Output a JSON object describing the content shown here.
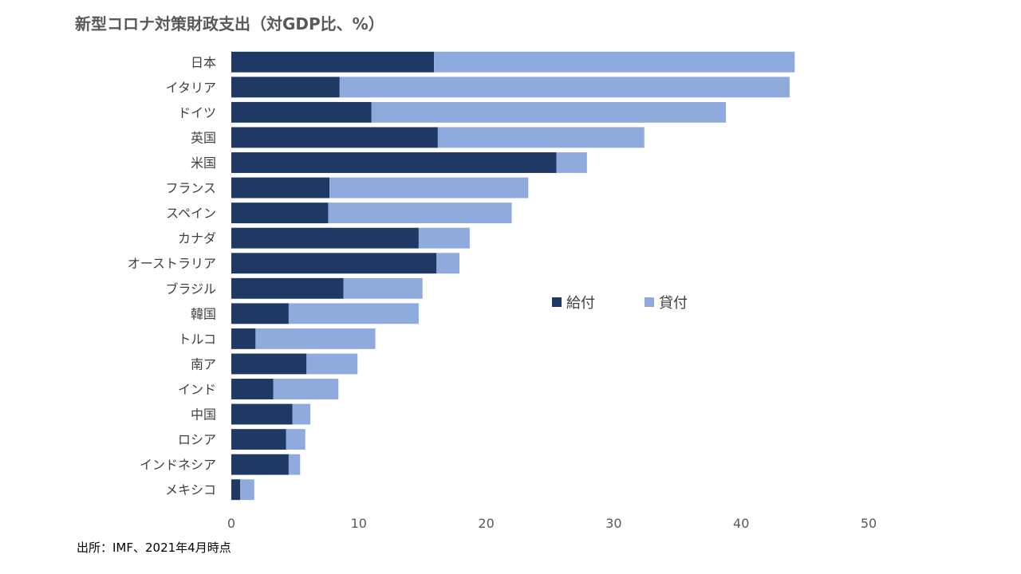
{
  "chart_data": {
    "type": "bar",
    "orientation": "horizontal",
    "stacked": true,
    "title": "新型コロナ対策財政支出（対GDP比、%）",
    "source": "出所：IMF、2021年4月時点",
    "categories": [
      "日本",
      "イタリア",
      "ドイツ",
      "英国",
      "米国",
      "フランス",
      "スペイン",
      "カナダ",
      "オーストラリア",
      "ブラジル",
      "韓国",
      "トルコ",
      "南ア",
      "インド",
      "中国",
      "ロシア",
      "インドネシア",
      "メキシコ"
    ],
    "series": [
      {
        "name": "給付",
        "color": "#1f3864",
        "values": [
          15.9,
          8.5,
          11.0,
          16.2,
          25.5,
          7.7,
          7.6,
          14.7,
          16.1,
          8.8,
          4.5,
          1.9,
          5.9,
          3.3,
          4.8,
          4.3,
          4.5,
          0.7
        ]
      },
      {
        "name": "貸付",
        "color": "#8faadc",
        "values": [
          28.3,
          35.3,
          27.8,
          16.2,
          2.4,
          15.6,
          14.4,
          4.0,
          1.8,
          6.2,
          10.2,
          9.4,
          4.0,
          5.1,
          1.4,
          1.5,
          0.9,
          1.1
        ]
      }
    ],
    "xlim": [
      0,
      50
    ],
    "xticks": [
      "0",
      "10",
      "20",
      "30",
      "40",
      "50"
    ],
    "grid": false,
    "legend_position": "center-right"
  }
}
